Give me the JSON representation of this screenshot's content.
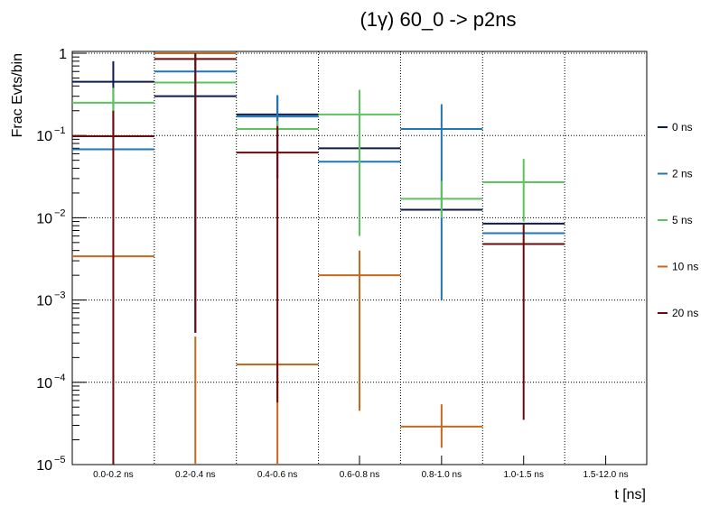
{
  "chart_data": {
    "type": "bar",
    "title": "(1γ) 60_0 -> p2ns",
    "xlabel": "t [ns]",
    "ylabel": "Frac Evts/bin",
    "yscale": "log",
    "ylim": [
      1e-05,
      1.2
    ],
    "grid": true,
    "legend_position": "right",
    "categories": [
      "0.0-0.2 ns",
      "0.2-0.4 ns",
      "0.4-0.6 ns",
      "0.6-0.8 ns",
      "0.8-1.0 ns",
      "1.0-1.5 ns",
      "1.5-12.0 ns"
    ],
    "y_ticks": [
      {
        "value": 1,
        "mantissa": "1",
        "exponent": ""
      },
      {
        "value": 0.1,
        "mantissa": "10",
        "exponent": "−1"
      },
      {
        "value": 0.01,
        "mantissa": "10",
        "exponent": "−2"
      },
      {
        "value": 0.001,
        "mantissa": "10",
        "exponent": "−3"
      },
      {
        "value": 0.0001,
        "mantissa": "10",
        "exponent": "−4"
      },
      {
        "value": 1e-05,
        "mantissa": "10",
        "exponent": "−5"
      }
    ],
    "series": [
      {
        "name": "0 ns",
        "color": "#0f1a4d",
        "values": [
          0.45,
          0.3,
          0.18,
          0.07,
          0.0125,
          0.0085,
          null
        ],
        "err_lo": [
          0.09,
          0.0004,
          0.03,
          null,
          null,
          null,
          null
        ],
        "err_hi": [
          0.8,
          1.0,
          0.3,
          null,
          null,
          null,
          null
        ]
      },
      {
        "name": "2 ns",
        "color": "#1f77b4",
        "values": [
          0.068,
          0.6,
          0.17,
          0.048,
          0.12,
          0.0065,
          null
        ],
        "err_lo": [
          null,
          null,
          0.1,
          null,
          0.001,
          null,
          null
        ],
        "err_hi": [
          null,
          null,
          0.31,
          null,
          0.24,
          null,
          null
        ]
      },
      {
        "name": "5 ns",
        "color": "#5cc45c",
        "values": [
          0.25,
          0.44,
          0.12,
          0.18,
          0.017,
          0.027,
          null
        ],
        "err_lo": [
          0.16,
          null,
          0.1,
          0.006,
          0.01,
          0.009,
          null
        ],
        "err_hi": [
          0.38,
          null,
          0.15,
          0.36,
          0.028,
          0.052,
          null
        ]
      },
      {
        "name": "10 ns",
        "color": "#c8681c",
        "values": [
          0.0034,
          1.0,
          0.000165,
          0.002,
          2.9e-05,
          null,
          null
        ],
        "err_lo": [
          null,
          1e-05,
          1e-05,
          4.5e-05,
          1.6e-05,
          null,
          null
        ],
        "err_hi": [
          null,
          0.00036,
          0.00018,
          0.004,
          5.4e-05,
          null,
          null
        ]
      },
      {
        "name": "20 ns",
        "color": "#6b0a0a",
        "values": [
          0.098,
          0.85,
          0.062,
          null,
          null,
          0.0048,
          null
        ],
        "err_lo": [
          1e-05,
          0.0004,
          5.7e-05,
          null,
          null,
          3.5e-05,
          null
        ],
        "err_hi": [
          0.2,
          1.0,
          0.13,
          null,
          null,
          0.0085,
          null
        ]
      }
    ]
  }
}
